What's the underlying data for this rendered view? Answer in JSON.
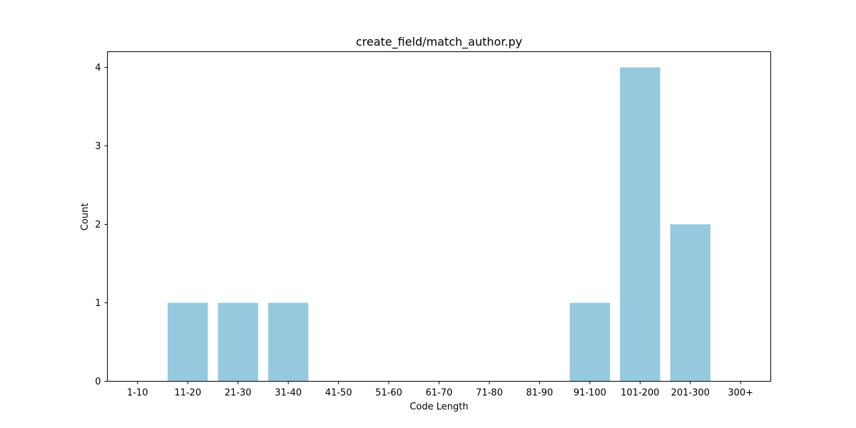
{
  "chart_data": {
    "type": "bar",
    "title": "create_field/match_author.py",
    "xlabel": "Code Length",
    "ylabel": "Count",
    "categories": [
      "1-10",
      "11-20",
      "21-30",
      "31-40",
      "41-50",
      "51-60",
      "61-70",
      "71-80",
      "81-90",
      "91-100",
      "101-200",
      "201-300",
      "300+"
    ],
    "values": [
      0,
      1,
      1,
      1,
      0,
      0,
      0,
      0,
      0,
      1,
      4,
      2,
      0
    ],
    "ylim": [
      0,
      4.2
    ],
    "yticks": [
      0,
      1,
      2,
      3,
      4
    ],
    "grid": false,
    "bar_color": "#96c9dd"
  }
}
